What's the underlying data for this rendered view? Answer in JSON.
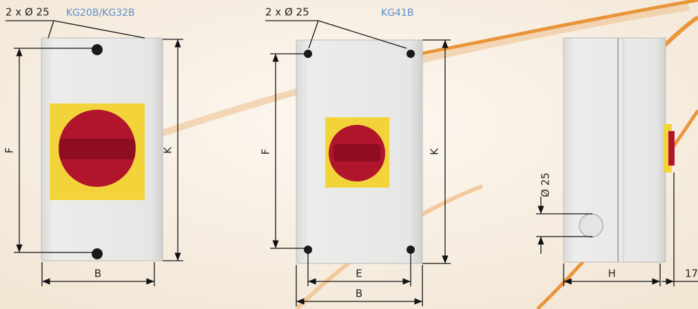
{
  "views": [
    {
      "holes": "2 x Ø 25",
      "model": "KG20B/KG32B",
      "height_inner": "F",
      "height_outer": "K",
      "width": "B"
    },
    {
      "holes": "2 x Ø 25",
      "model": "KG41B",
      "height_inner": "F",
      "height_outer": "K",
      "width_inner": "E",
      "width": "B"
    },
    {
      "hole": "Ø 25",
      "depth": "H",
      "knob_depth": "17"
    }
  ]
}
